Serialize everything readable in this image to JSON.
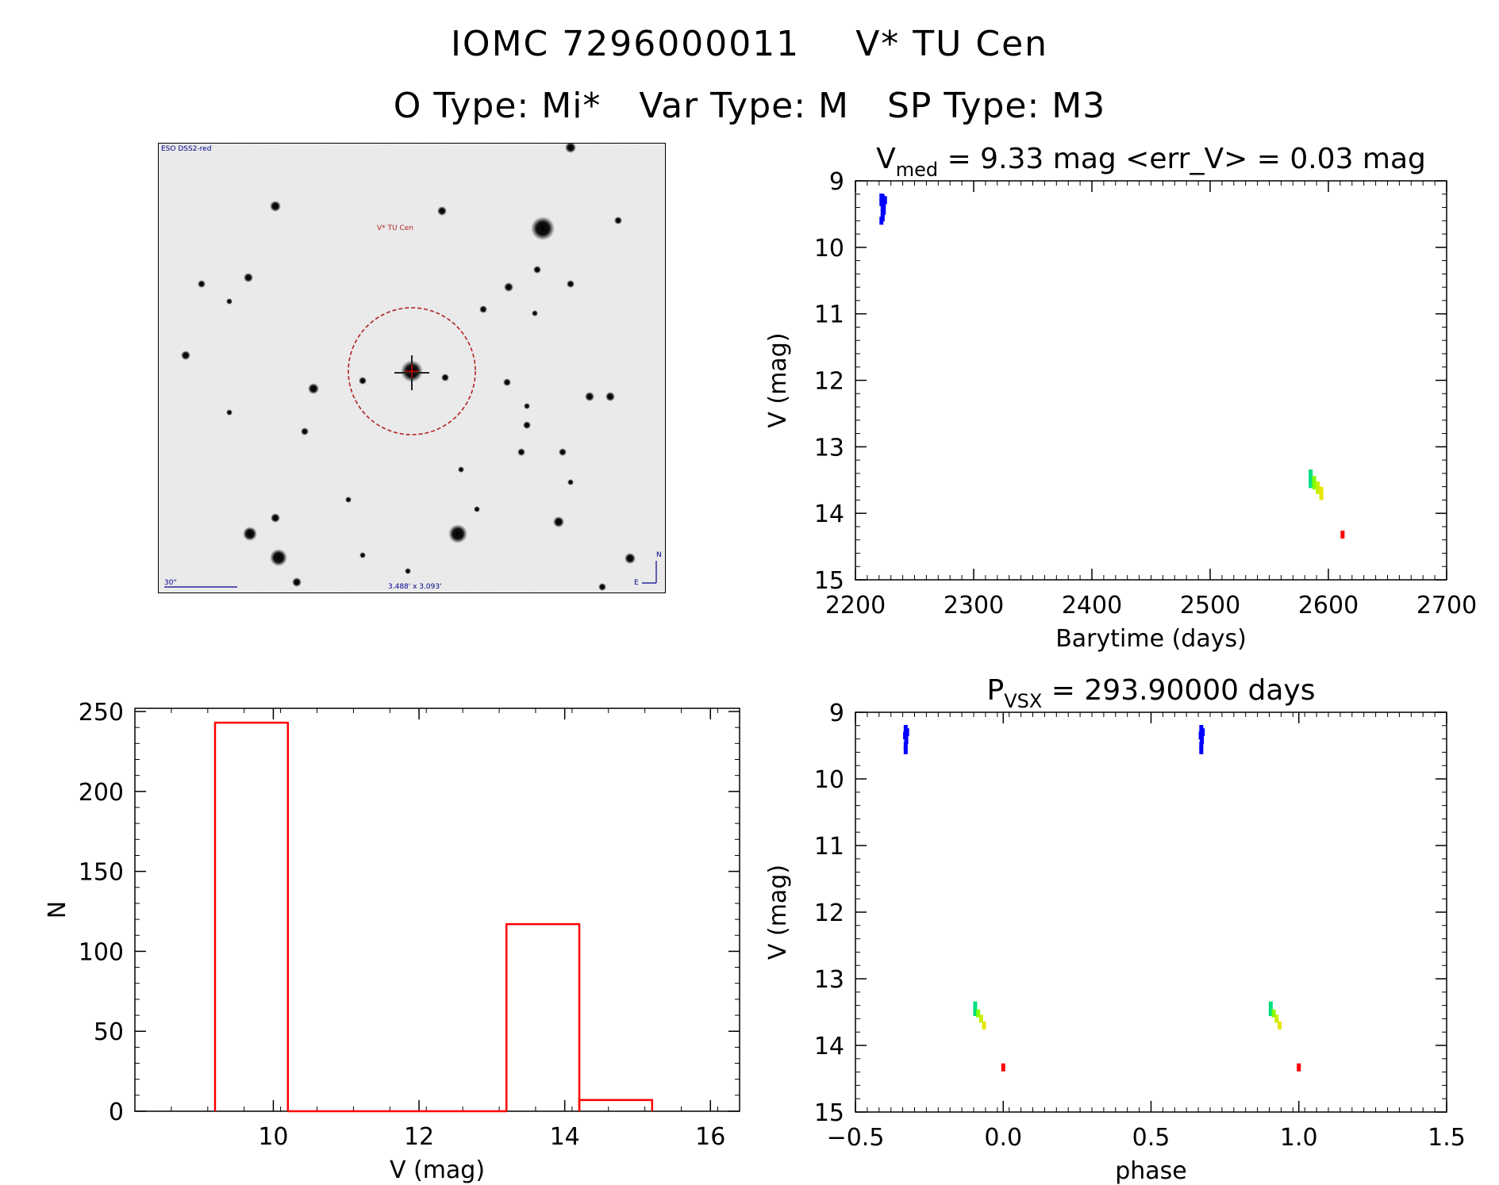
{
  "header": {
    "object_id": "IOMC 7296000011",
    "object_name": "V* TU Cen",
    "o_type": "O Type: Mi*",
    "var_type": "Var Type: M",
    "sp_type": "SP Type: M3"
  },
  "sky_image": {
    "survey_label": "ESO DSS2-red",
    "target_label": "V* TU Cen",
    "scale_label": "30\"",
    "fov_label": "3.488' x 3.093'",
    "compass_n": "N",
    "compass_e": "E"
  },
  "chart_data": [
    {
      "id": "lightcurve",
      "type": "scatter",
      "title_main": "V",
      "title_sub": "med",
      "title_rest": " = 9.33 mag <err_V> = 0.03 mag",
      "xlabel": "Barytime (days)",
      "ylabel": "V (mag)",
      "xlim": [
        2200,
        2700
      ],
      "ylim": [
        15,
        9
      ],
      "y_reversed": true,
      "xticks": [
        2200,
        2300,
        2400,
        2500,
        2600,
        2700
      ],
      "yticks": [
        9,
        10,
        11,
        12,
        13,
        14,
        15
      ],
      "grid": false,
      "points": [
        {
          "x": 2222,
          "y": 9.25,
          "color": "#0000ff"
        },
        {
          "x": 2223,
          "y": 9.28,
          "color": "#0000ff"
        },
        {
          "x": 2224,
          "y": 9.3,
          "color": "#0000ff"
        },
        {
          "x": 2222,
          "y": 9.32,
          "color": "#0000ff"
        },
        {
          "x": 2223,
          "y": 9.26,
          "color": "#0000ff"
        },
        {
          "x": 2225,
          "y": 9.29,
          "color": "#0000ff"
        },
        {
          "x": 2224,
          "y": 9.34,
          "color": "#0000ff"
        },
        {
          "x": 2223,
          "y": 9.4,
          "color": "#0000ff"
        },
        {
          "x": 2224,
          "y": 9.45,
          "color": "#0000ff"
        },
        {
          "x": 2223,
          "y": 9.5,
          "color": "#0000ff"
        },
        {
          "x": 2223,
          "y": 9.55,
          "color": "#0000ff"
        },
        {
          "x": 2222,
          "y": 9.6,
          "color": "#0000ff"
        },
        {
          "x": 2585,
          "y": 13.4,
          "color": "#00e080"
        },
        {
          "x": 2585,
          "y": 13.48,
          "color": "#00e080"
        },
        {
          "x": 2585,
          "y": 13.56,
          "color": "#00e080"
        },
        {
          "x": 2588,
          "y": 13.5,
          "color": "#80ff00"
        },
        {
          "x": 2588,
          "y": 13.58,
          "color": "#80ff00"
        },
        {
          "x": 2591,
          "y": 13.58,
          "color": "#c8f000"
        },
        {
          "x": 2591,
          "y": 13.65,
          "color": "#c8f000"
        },
        {
          "x": 2594,
          "y": 13.66,
          "color": "#e6e600"
        },
        {
          "x": 2594,
          "y": 13.74,
          "color": "#e6e600"
        },
        {
          "x": 2612,
          "y": 14.32,
          "color": "#ff0000"
        }
      ]
    },
    {
      "id": "phased",
      "type": "scatter",
      "title_main": "P",
      "title_sub": "VSX",
      "title_rest": " = 293.90000 days",
      "xlabel": "phase",
      "ylabel": "V (mag)",
      "xlim": [
        -0.5,
        1.5
      ],
      "ylim": [
        15,
        9
      ],
      "y_reversed": true,
      "xticks": [
        -0.5,
        0.0,
        0.5,
        1.0,
        1.5
      ],
      "xtick_labels": [
        "−0.5",
        "0.0",
        "0.5",
        "1.0",
        "1.5"
      ],
      "yticks": [
        9,
        10,
        11,
        12,
        13,
        14,
        15
      ],
      "grid": false,
      "points": [
        {
          "x": -0.33,
          "y": 9.25,
          "color": "#0000ff"
        },
        {
          "x": -0.325,
          "y": 9.3,
          "color": "#0000ff"
        },
        {
          "x": -0.332,
          "y": 9.35,
          "color": "#0000ff"
        },
        {
          "x": -0.328,
          "y": 9.42,
          "color": "#0000ff"
        },
        {
          "x": -0.33,
          "y": 9.5,
          "color": "#0000ff"
        },
        {
          "x": -0.33,
          "y": 9.57,
          "color": "#0000ff"
        },
        {
          "x": 0.67,
          "y": 9.25,
          "color": "#0000ff"
        },
        {
          "x": 0.675,
          "y": 9.3,
          "color": "#0000ff"
        },
        {
          "x": 0.668,
          "y": 9.35,
          "color": "#0000ff"
        },
        {
          "x": 0.672,
          "y": 9.42,
          "color": "#0000ff"
        },
        {
          "x": 0.67,
          "y": 9.5,
          "color": "#0000ff"
        },
        {
          "x": 0.67,
          "y": 9.57,
          "color": "#0000ff"
        },
        {
          "x": -0.095,
          "y": 13.4,
          "color": "#00e080"
        },
        {
          "x": -0.095,
          "y": 13.5,
          "color": "#00e080"
        },
        {
          "x": -0.085,
          "y": 13.52,
          "color": "#80ff00"
        },
        {
          "x": -0.075,
          "y": 13.6,
          "color": "#c8f000"
        },
        {
          "x": -0.065,
          "y": 13.7,
          "color": "#e6e600"
        },
        {
          "x": 0.0,
          "y": 14.33,
          "color": "#ff0000"
        },
        {
          "x": 0.905,
          "y": 13.4,
          "color": "#00e080"
        },
        {
          "x": 0.905,
          "y": 13.5,
          "color": "#00e080"
        },
        {
          "x": 0.915,
          "y": 13.52,
          "color": "#80ff00"
        },
        {
          "x": 0.925,
          "y": 13.6,
          "color": "#c8f000"
        },
        {
          "x": 0.935,
          "y": 13.7,
          "color": "#e6e600"
        },
        {
          "x": 1.0,
          "y": 14.33,
          "color": "#ff0000"
        }
      ]
    },
    {
      "id": "histogram",
      "type": "bar",
      "xlabel": "V (mag)",
      "ylabel": "N",
      "xlim": [
        8.1,
        16.4
      ],
      "ylim": [
        0,
        252
      ],
      "xticks": [
        10,
        12,
        14,
        16
      ],
      "yticks": [
        0,
        50,
        100,
        150,
        200,
        250
      ],
      "bar_color": "#ff0000",
      "bins": [
        {
          "x0": 9.2,
          "x1": 10.2,
          "value": 243
        },
        {
          "x0": 10.2,
          "x1": 11.2,
          "value": 0
        },
        {
          "x0": 11.2,
          "x1": 12.2,
          "value": 0
        },
        {
          "x0": 12.2,
          "x1": 13.2,
          "value": 0
        },
        {
          "x0": 13.2,
          "x1": 14.2,
          "value": 117
        },
        {
          "x0": 14.2,
          "x1": 15.2,
          "value": 7
        }
      ]
    }
  ]
}
